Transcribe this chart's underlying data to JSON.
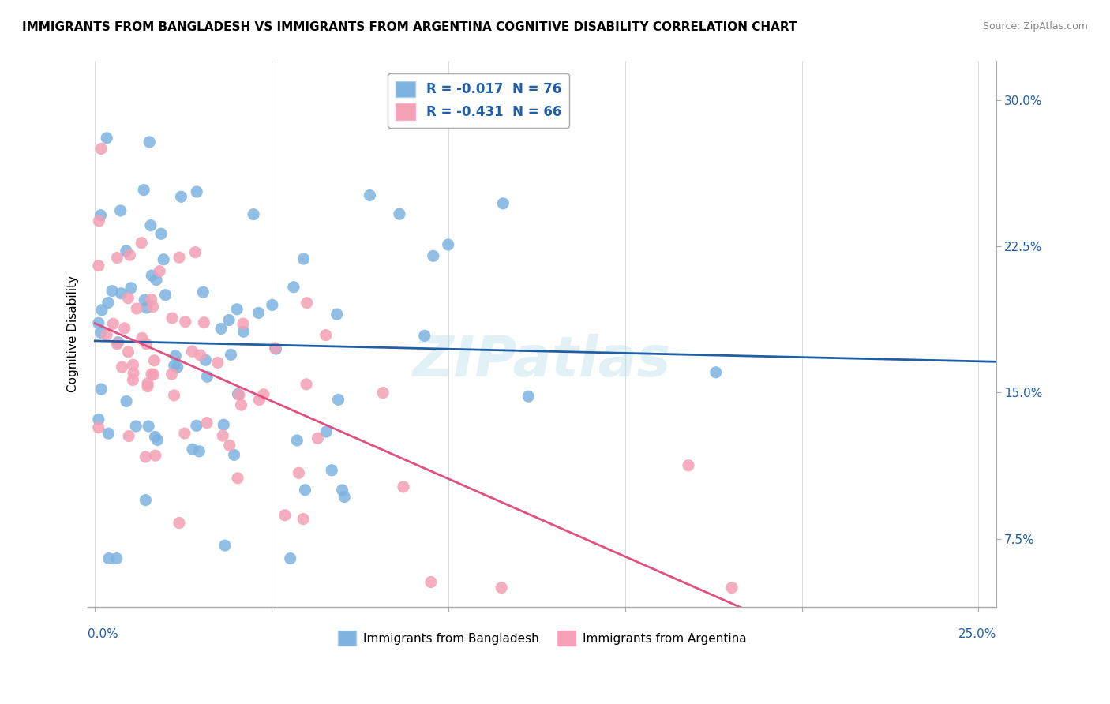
{
  "title": "IMMIGRANTS FROM BANGLADESH VS IMMIGRANTS FROM ARGENTINA COGNITIVE DISABILITY CORRELATION CHART",
  "source": "Source: ZipAtlas.com",
  "ylabel_ticks": [
    "7.5%",
    "15.0%",
    "22.5%",
    "30.0%"
  ],
  "ylim": [
    0.04,
    0.32
  ],
  "xlim": [
    -0.002,
    0.255
  ],
  "legend_blue_text": "R = -0.017  N = 76",
  "legend_pink_text": "R = -0.431  N = 66",
  "blue_color": "#7EB3E0",
  "pink_color": "#F4A0B5",
  "blue_line_color": "#1F5FA6",
  "pink_line_color": "#E05080",
  "blue_R": -0.017,
  "blue_N": 76,
  "pink_R": -0.431,
  "pink_N": 66,
  "watermark": "ZIPatlas",
  "background_color": "#FFFFFF",
  "grid_color": "#DDDDDD",
  "title_fontsize": 11,
  "source_fontsize": 9
}
